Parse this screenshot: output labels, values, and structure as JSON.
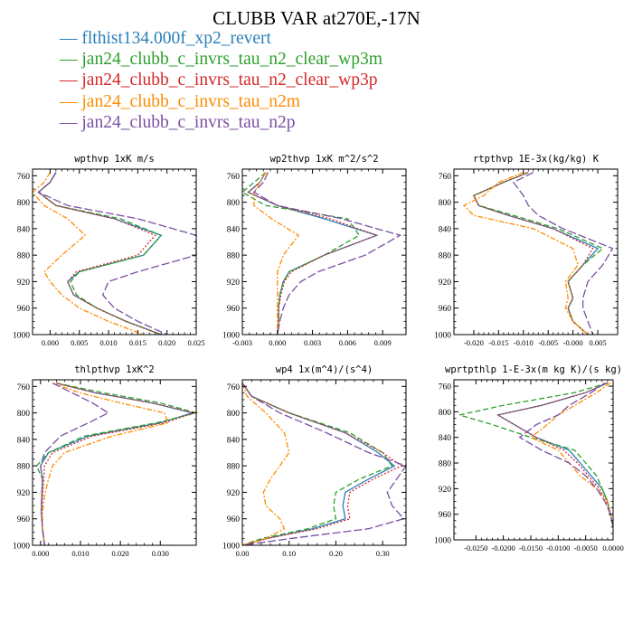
{
  "title": "CLUBB VAR at270E,-17N",
  "legend": [
    {
      "label": "flthist134.000f_xp2_revert",
      "color": "#2a80b9"
    },
    {
      "label": "jan24_clubb_c_invrs_tau_n2_clear_wp3m",
      "color": "#2ca02c"
    },
    {
      "label": "jan24_clubb_c_invrs_tau_n2_clear_wp3p",
      "color": "#d62728"
    },
    {
      "label": "jan24_clubb_c_invrs_tau_n2m",
      "color": "#ff8c00"
    },
    {
      "label": "jan24_clubb_c_invrs_tau_n2p",
      "color": "#7b4fa3"
    }
  ],
  "chart_data": [
    {
      "type": "line",
      "title": "wpthvp   1xK m/s",
      "xlim": [
        -0.003,
        0.025
      ],
      "ylim": [
        1000,
        750
      ],
      "xticks": [
        0.0,
        0.005,
        0.01,
        0.015,
        0.02,
        0.025
      ],
      "xticklabels": [
        "0.000",
        "0.005",
        "0.010",
        "0.015",
        "0.020",
        "0.025"
      ],
      "yticks": [
        760,
        800,
        840,
        880,
        920,
        960,
        1000
      ],
      "y": [
        755,
        770,
        785,
        805,
        825,
        850,
        880,
        905,
        920,
        940,
        960,
        980,
        1000
      ],
      "series": [
        {
          "values": [
            0.001,
            0.0,
            -0.002,
            0.001,
            0.011,
            0.019,
            0.016,
            0.005,
            0.003,
            0.004,
            0.008,
            0.013,
            0.019
          ],
          "style": "solid"
        },
        {
          "values": [
            0.001,
            0.0,
            -0.002,
            0.001,
            0.012,
            0.019,
            0.016,
            0.005,
            0.0035,
            0.0045,
            0.008,
            0.013,
            0.019
          ],
          "style": "dash"
        },
        {
          "values": [
            0.001,
            0.0,
            -0.002,
            0.001,
            0.011,
            0.018,
            0.015,
            0.0045,
            0.003,
            0.004,
            0.008,
            0.013,
            0.019
          ],
          "style": "dot"
        },
        {
          "values": [
            0.0,
            -0.001,
            -0.003,
            -0.001,
            0.003,
            0.006,
            0.002,
            -0.001,
            0.0,
            0.002,
            0.005,
            0.01,
            0.016
          ],
          "style": "dashdot"
        },
        {
          "values": [
            0.001,
            0.0,
            -0.002,
            0.003,
            0.015,
            0.025,
            0.025,
            0.015,
            0.01,
            0.009,
            0.011,
            0.015,
            0.02
          ],
          "style": "longdash"
        }
      ]
    },
    {
      "type": "line",
      "title": "wp2thvp   1xK m^2/s^2",
      "xlim": [
        -0.003,
        0.011
      ],
      "ylim": [
        1000,
        750
      ],
      "xticks": [
        -0.003,
        0.0,
        0.003,
        0.006,
        0.009
      ],
      "xticklabels": [
        "-0.003",
        "0.000",
        "0.003",
        "0.006",
        "0.009"
      ],
      "yticks": [
        760,
        800,
        840,
        880,
        920,
        960,
        1000
      ],
      "y": [
        755,
        770,
        785,
        805,
        825,
        850,
        880,
        905,
        920,
        940,
        960,
        980,
        1000
      ],
      "series": [
        {
          "values": [
            -0.001,
            -0.0015,
            -0.0025,
            0.0,
            0.004,
            0.0085,
            0.004,
            0.001,
            0.0005,
            0.0002,
            0.0001,
            0.0001,
            0.0
          ],
          "style": "solid"
        },
        {
          "values": [
            -0.001,
            -0.002,
            -0.003,
            -0.001,
            0.006,
            0.007,
            0.004,
            0.001,
            0.0005,
            0.0002,
            0.0001,
            0.0001,
            0.0
          ],
          "style": "dash"
        },
        {
          "values": [
            -0.001,
            -0.0015,
            -0.0025,
            0.0,
            0.0045,
            0.0085,
            0.004,
            0.0012,
            0.0006,
            0.0003,
            0.0001,
            0.0001,
            0.0
          ],
          "style": "dot"
        },
        {
          "values": [
            -0.001,
            -0.0015,
            -0.002,
            -0.002,
            -0.0005,
            0.0018,
            0.0005,
            0.0,
            0.0,
            0.0,
            0.0,
            0.0,
            0.0
          ],
          "style": "dashdot"
        },
        {
          "values": [
            -0.0008,
            -0.0012,
            -0.002,
            0.0,
            0.0055,
            0.0105,
            0.0075,
            0.0035,
            0.002,
            0.001,
            0.0005,
            0.0002,
            0.0
          ],
          "style": "longdash"
        }
      ]
    },
    {
      "type": "line",
      "title": "rtpthvp   1E-3x(kg/kg) K",
      "xlim": [
        -0.024,
        0.009
      ],
      "ylim": [
        1000,
        750
      ],
      "xticks": [
        -0.02,
        -0.015,
        -0.01,
        -0.005,
        0.0,
        0.005
      ],
      "xticklabels": [
        "-0.020",
        "-0.015",
        "-0.010",
        "-0.005",
        "-0.000",
        "0.005"
      ],
      "yticks": [
        760,
        800,
        840,
        880,
        920,
        960,
        1000
      ],
      "y": [
        755,
        770,
        790,
        805,
        820,
        840,
        870,
        895,
        920,
        945,
        960,
        980,
        1000
      ],
      "series": [
        {
          "values": [
            -0.009,
            -0.014,
            -0.02,
            -0.019,
            -0.013,
            -0.004,
            0.005,
            0.002,
            -0.001,
            0.0,
            -0.001,
            0.0,
            0.003
          ],
          "style": "solid"
        },
        {
          "values": [
            -0.009,
            -0.014,
            -0.02,
            -0.019,
            -0.012,
            -0.003,
            0.006,
            0.002,
            -0.001,
            0.0,
            -0.001,
            0.0,
            0.003
          ],
          "style": "dash"
        },
        {
          "values": [
            -0.009,
            -0.014,
            -0.02,
            -0.019,
            -0.013,
            -0.004,
            0.004,
            0.002,
            -0.001,
            0.0,
            -0.001,
            0.0,
            0.003
          ],
          "style": "dot"
        },
        {
          "values": [
            -0.01,
            -0.015,
            -0.018,
            -0.022,
            -0.02,
            -0.008,
            0.0,
            0.001,
            -0.0015,
            -0.001,
            -0.0015,
            0.0,
            0.003
          ],
          "style": "dashdot"
        },
        {
          "values": [
            -0.008,
            -0.012,
            -0.01,
            -0.009,
            -0.007,
            -0.002,
            0.008,
            0.006,
            0.003,
            0.002,
            0.002,
            0.003,
            0.004
          ],
          "style": "longdash"
        }
      ]
    },
    {
      "type": "line",
      "title": "thlpthvp   1xK^2",
      "xlim": [
        -0.002,
        0.039
      ],
      "ylim": [
        1000,
        750
      ],
      "xticks": [
        0.0,
        0.01,
        0.02,
        0.03
      ],
      "xticklabels": [
        "0.000",
        "0.010",
        "0.020",
        "0.030"
      ],
      "yticks": [
        760,
        800,
        840,
        880,
        920,
        960,
        1000
      ],
      "y": [
        755,
        770,
        785,
        800,
        815,
        835,
        860,
        880,
        900,
        925,
        950,
        975,
        1000
      ],
      "series": [
        {
          "values": [
            0.004,
            0.014,
            0.028,
            0.038,
            0.03,
            0.012,
            0.002,
            0.0,
            0.0005,
            0.0003,
            0.0002,
            0.0005,
            0.001
          ],
          "style": "solid"
        },
        {
          "values": [
            0.004,
            0.016,
            0.03,
            0.039,
            0.029,
            0.011,
            0.002,
            -0.001,
            0.0005,
            0.0003,
            0.0002,
            0.0005,
            0.001
          ],
          "style": "dash"
        },
        {
          "values": [
            0.004,
            0.014,
            0.028,
            0.0385,
            0.031,
            0.013,
            0.003,
            0.001,
            0.0008,
            0.0005,
            0.0003,
            0.0005,
            0.001
          ],
          "style": "dot"
        },
        {
          "values": [
            0.003,
            0.01,
            0.02,
            0.031,
            0.032,
            0.018,
            0.006,
            0.003,
            0.002,
            0.001,
            0.0005,
            0.0005,
            0.001
          ],
          "style": "dashdot"
        },
        {
          "values": [
            0.003,
            0.008,
            0.013,
            0.017,
            0.012,
            0.005,
            0.001,
            0.0,
            0.0005,
            0.0003,
            0.0002,
            0.0005,
            0.001
          ],
          "style": "longdash"
        }
      ]
    },
    {
      "type": "line",
      "title": "wp4   1x(m^4)/(s^4)",
      "xlim": [
        0.0,
        0.35
      ],
      "ylim": [
        1000,
        750
      ],
      "xticks": [
        0.0,
        0.1,
        0.2,
        0.3
      ],
      "xticklabels": [
        "0.00",
        "0.10",
        "0.20",
        "0.30"
      ],
      "yticks": [
        760,
        800,
        840,
        880,
        920,
        960,
        1000
      ],
      "y": [
        755,
        775,
        800,
        830,
        860,
        880,
        900,
        920,
        940,
        960,
        975,
        990,
        1000
      ],
      "series": [
        {
          "values": [
            0.0,
            0.02,
            0.1,
            0.22,
            0.29,
            0.325,
            0.27,
            0.22,
            0.215,
            0.22,
            0.15,
            0.05,
            0.0
          ],
          "style": "solid"
        },
        {
          "values": [
            0.0,
            0.02,
            0.1,
            0.23,
            0.3,
            0.32,
            0.25,
            0.2,
            0.195,
            0.2,
            0.14,
            0.04,
            0.0
          ],
          "style": "dash"
        },
        {
          "values": [
            0.0,
            0.02,
            0.1,
            0.22,
            0.3,
            0.34,
            0.28,
            0.23,
            0.225,
            0.23,
            0.16,
            0.05,
            0.0
          ],
          "style": "dot"
        },
        {
          "values": [
            0.0,
            0.01,
            0.05,
            0.09,
            0.1,
            0.08,
            0.06,
            0.045,
            0.05,
            0.08,
            0.09,
            0.05,
            0.0
          ],
          "style": "dashdot"
        },
        {
          "values": [
            0.0,
            0.02,
            0.08,
            0.18,
            0.27,
            0.35,
            0.33,
            0.31,
            0.32,
            0.345,
            0.27,
            0.1,
            0.0
          ],
          "style": "longdash"
        }
      ]
    },
    {
      "type": "line",
      "title": "wprtpthlp   1-E-3x(m kg K)/(s kg)",
      "xlim": [
        -0.029,
        0.0
      ],
      "ylim": [
        1000,
        750
      ],
      "xticks": [
        -0.025,
        -0.02,
        -0.015,
        -0.01,
        -0.005,
        0.0
      ],
      "xticklabels": [
        "-0.0250",
        "-0.0200",
        "-0.0150",
        "-0.0100",
        "-0.0050",
        "0.0000"
      ],
      "yticks": [
        760,
        800,
        840,
        880,
        920,
        960,
        1000
      ],
      "y": [
        755,
        770,
        790,
        805,
        820,
        840,
        860,
        880,
        900,
        920,
        940,
        960,
        980
      ],
      "series": [
        {
          "values": [
            -0.001,
            -0.005,
            -0.013,
            -0.021,
            -0.018,
            -0.014,
            -0.008,
            -0.006,
            -0.004,
            -0.002,
            -0.001,
            -0.0005,
            0.0
          ],
          "style": "solid"
        },
        {
          "values": [
            -0.001,
            -0.007,
            -0.02,
            -0.028,
            -0.022,
            -0.015,
            -0.007,
            -0.005,
            -0.003,
            -0.002,
            -0.001,
            -0.0005,
            0.0
          ],
          "style": "dash"
        },
        {
          "values": [
            -0.001,
            -0.005,
            -0.013,
            -0.021,
            -0.018,
            -0.014,
            -0.009,
            -0.0065,
            -0.0045,
            -0.0025,
            -0.0012,
            -0.0005,
            0.0
          ],
          "style": "dot"
        },
        {
          "values": [
            -0.0005,
            -0.003,
            -0.007,
            -0.01,
            -0.012,
            -0.015,
            -0.01,
            -0.008,
            -0.006,
            -0.003,
            -0.001,
            -0.0005,
            0.0
          ],
          "style": "dashdot"
        },
        {
          "values": [
            -0.0015,
            -0.004,
            -0.008,
            -0.01,
            -0.014,
            -0.017,
            -0.013,
            -0.008,
            -0.005,
            -0.003,
            -0.0015,
            -0.0005,
            0.0
          ],
          "style": "longdash"
        }
      ]
    }
  ]
}
